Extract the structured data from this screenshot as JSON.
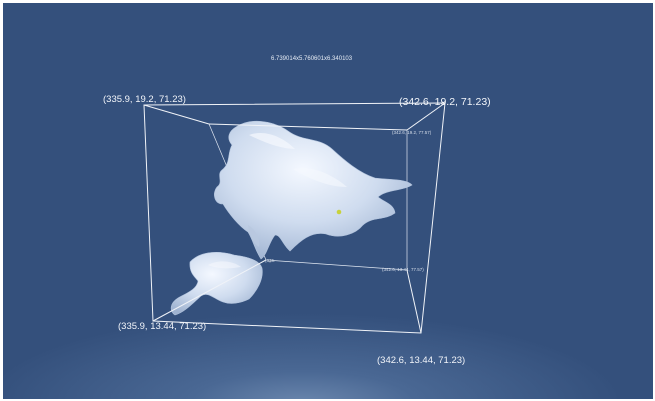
{
  "viewer": {
    "dimensions_label": "6.739014x5.760601x6.340103",
    "corners": {
      "top_left": "(335.9, 19.2, 71.23)",
      "top_right": "(342.6, 19.2, 71.23)",
      "bottom_left": "(335.9, 13.44, 71.23)",
      "bottom_right": "(342.6, 13.44, 71.23)",
      "back_top_right": "(342.6, 19.2, 77.57)",
      "back_bottom_right": "(342.6, 13.44, 77.57)",
      "back_bottom_left": "(335.9, 13.44, 77.57)"
    }
  },
  "colors": {
    "background": "#34507c",
    "surface": "#dce6f5",
    "bounding_box": "#f0f3f8",
    "marker": "#c8d23c"
  }
}
